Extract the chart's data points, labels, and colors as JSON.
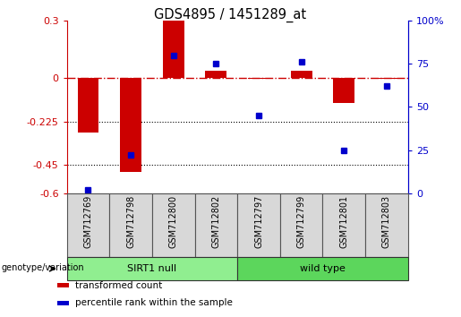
{
  "title": "GDS4895 / 1451289_at",
  "samples": [
    "GSM712769",
    "GSM712798",
    "GSM712800",
    "GSM712802",
    "GSM712797",
    "GSM712799",
    "GSM712801",
    "GSM712803"
  ],
  "red_bars": [
    -0.285,
    -0.49,
    0.3,
    0.04,
    -0.005,
    0.04,
    -0.13,
    -0.005
  ],
  "blue_dot_right": [
    2,
    22,
    80,
    75,
    45,
    76,
    25,
    62
  ],
  "group_labels": [
    "SIRT1 null",
    "wild type"
  ],
  "group_ranges": [
    [
      0,
      3
    ],
    [
      4,
      7
    ]
  ],
  "group_colors": [
    "#90EE90",
    "#5CD65C"
  ],
  "ylim_left": [
    -0.6,
    0.3
  ],
  "ylim_right": [
    0,
    100
  ],
  "yticks_left": [
    0.3,
    0,
    -0.225,
    -0.45,
    -0.6
  ],
  "yticks_right": [
    100,
    75,
    50,
    25,
    0
  ],
  "hline_dotted": [
    -0.225,
    -0.45
  ],
  "left_axis_color": "#cc0000",
  "right_axis_color": "#0000cc",
  "legend_items": [
    "transformed count",
    "percentile rank within the sample"
  ],
  "legend_colors": [
    "#cc0000",
    "#0000cc"
  ],
  "genotype_label": "genotype/variation",
  "bar_width": 0.5,
  "marker_size": 5
}
